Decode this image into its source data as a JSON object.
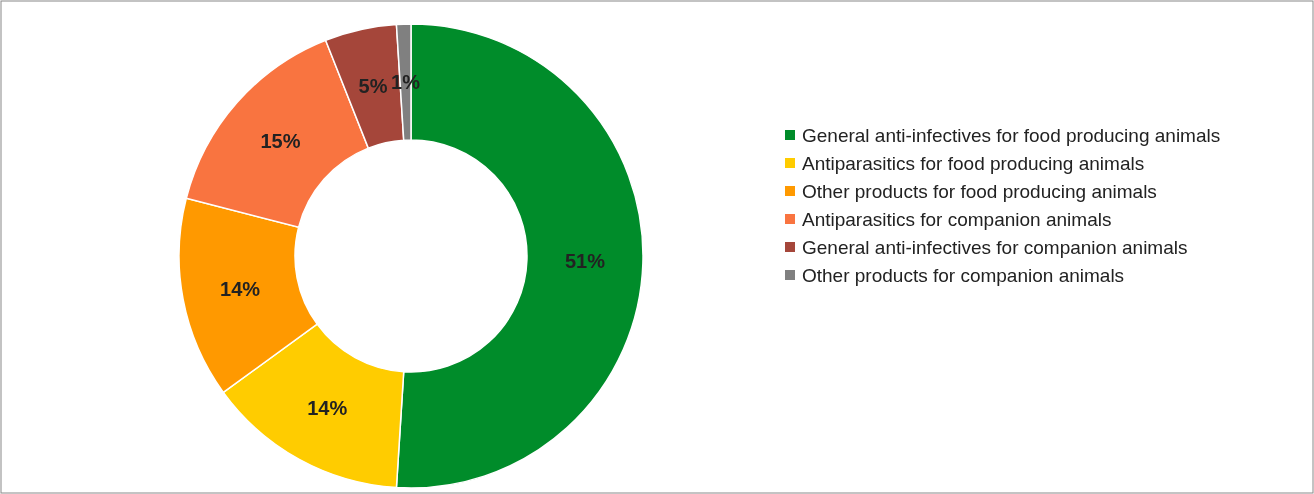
{
  "chart_data": {
    "type": "donut",
    "categories": [
      "General anti-infectives for food producing animals",
      "Antiparasitics for food producing animals",
      "Other products for food producing animals",
      "Antiparasitics for companion animals",
      "General anti-infectives for companion animals",
      "Other products for companion animals"
    ],
    "values": [
      51,
      14,
      14,
      15,
      5,
      1
    ],
    "colors": [
      "#008c2a",
      "#ffcc00",
      "#ff9900",
      "#f97440",
      "#a5463a",
      "#808080"
    ],
    "value_labels": [
      "51%",
      "14%",
      "14%",
      "15%",
      "5%",
      "1%"
    ],
    "legend": "right"
  }
}
